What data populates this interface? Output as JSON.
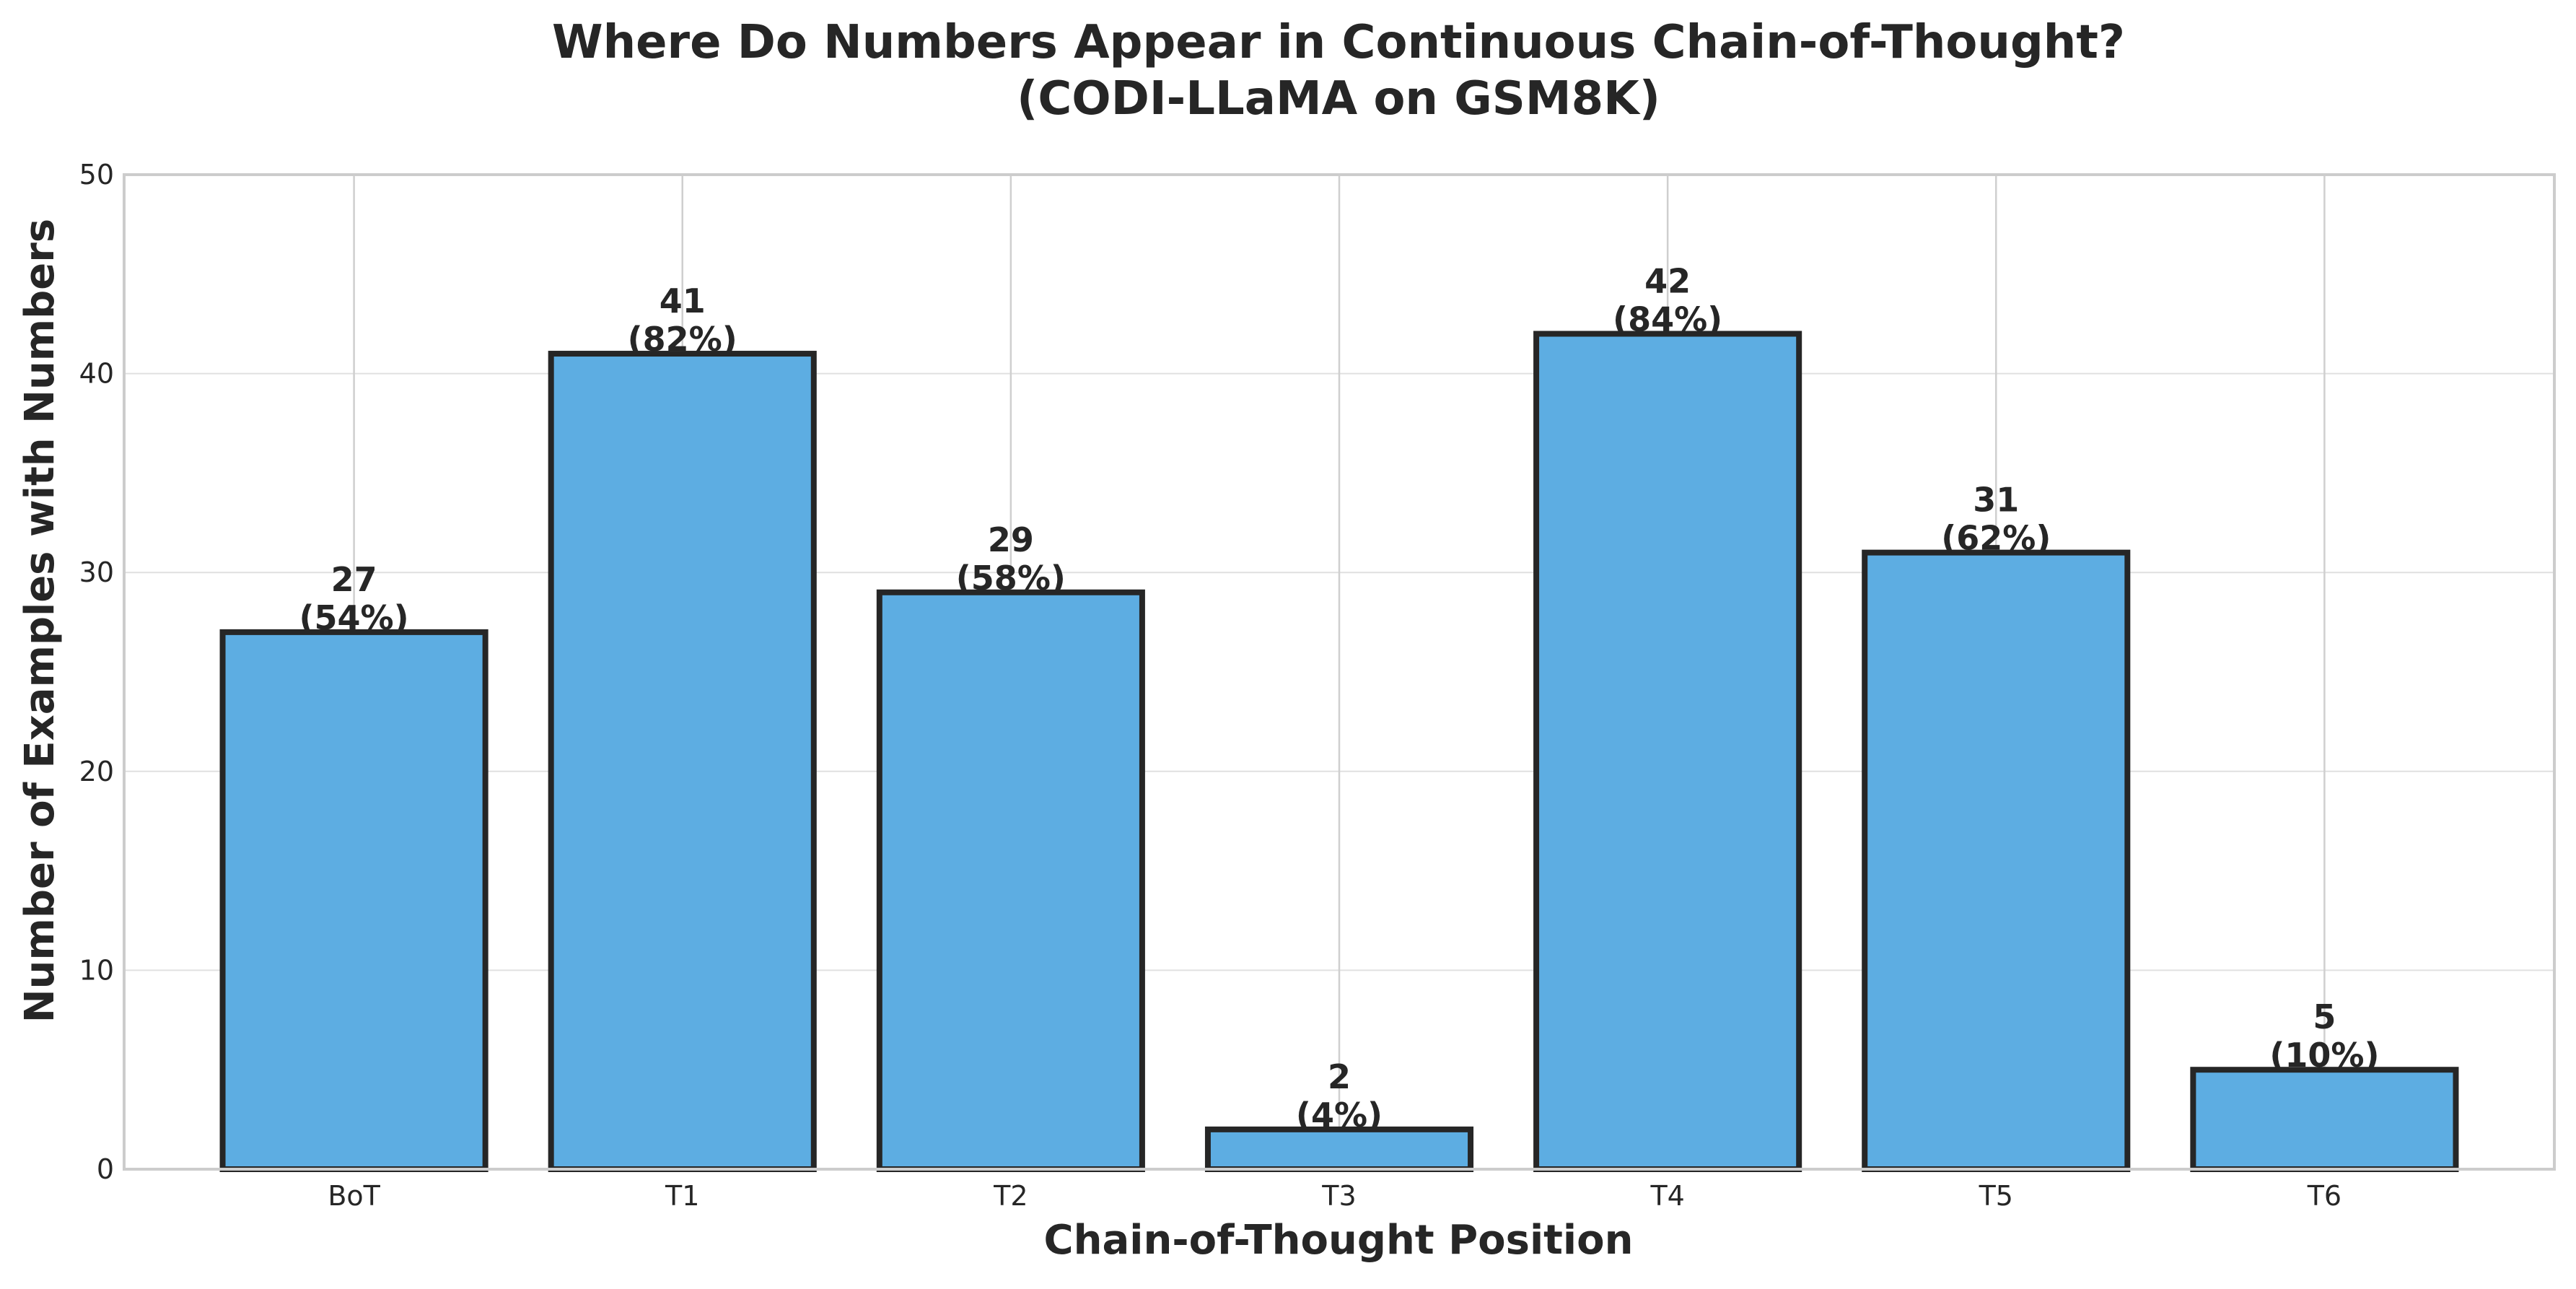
{
  "chart_data": {
    "type": "bar",
    "title": "Where Do Numbers Appear in Continuous Chain-of-Thought?",
    "subtitle": "(CODI-LLaMA on GSM8K)",
    "xlabel": "Chain-of-Thought Position",
    "ylabel": "Number of Examples with Numbers",
    "categories": [
      "BoT",
      "T1",
      "T2",
      "T3",
      "T4",
      "T5",
      "T6"
    ],
    "values": [
      27,
      41,
      29,
      2,
      42,
      31,
      5
    ],
    "data_labels": [
      {
        "count": "27",
        "percent": "(54%)"
      },
      {
        "count": "41",
        "percent": "(82%)"
      },
      {
        "count": "29",
        "percent": "(58%)"
      },
      {
        "count": "2",
        "percent": "(4%)"
      },
      {
        "count": "42",
        "percent": "(84%)"
      },
      {
        "count": "31",
        "percent": "(62%)"
      },
      {
        "count": "5",
        "percent": "(10%)"
      }
    ],
    "ylim": [
      0,
      50
    ],
    "yticks": [
      "0",
      "10",
      "20",
      "30",
      "40",
      "50"
    ],
    "grid": true,
    "colors": {
      "bar_fill": "#5dade2",
      "bar_edge": "#262626",
      "grid": "#e0e0e0",
      "frame": "#cccccc"
    }
  }
}
